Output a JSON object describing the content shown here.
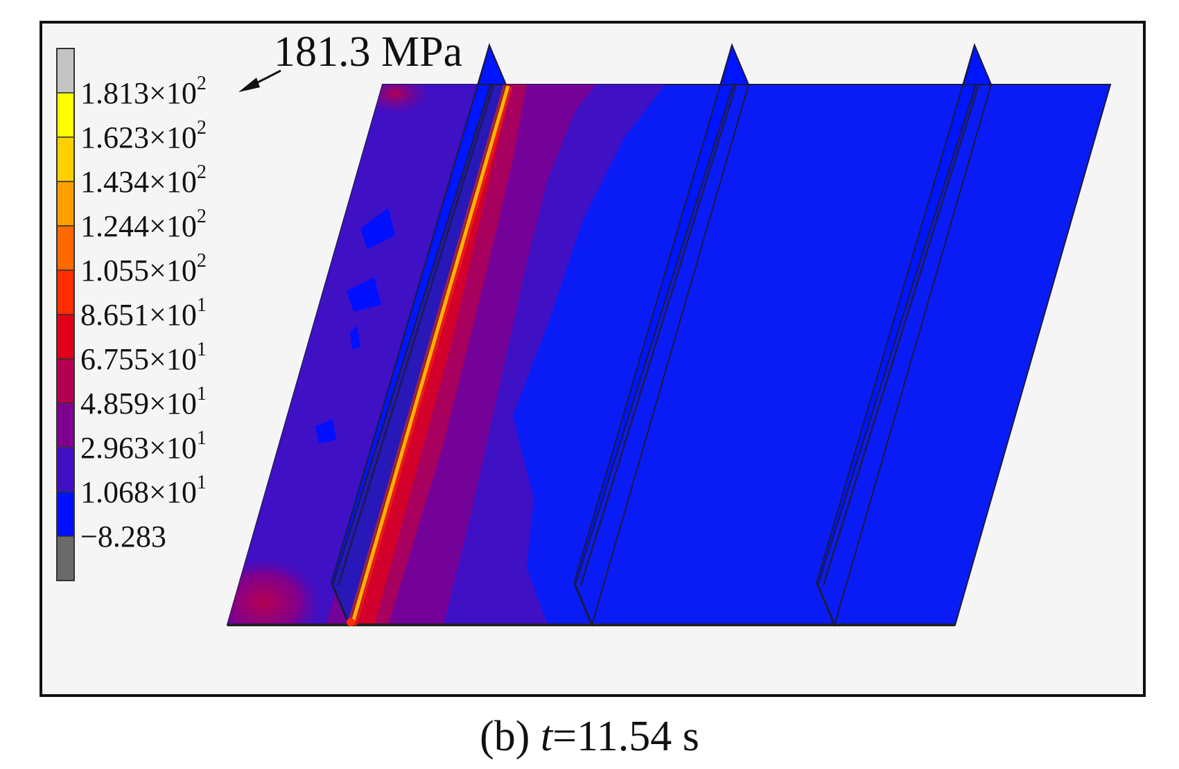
{
  "caption": {
    "prefix": "(b) ",
    "variable": "t",
    "equals_value": "=11.54 s"
  },
  "annotation": {
    "label": "181.3 MPa"
  },
  "legend": {
    "entries": [
      {
        "mantissa": "1.813×10",
        "exponent": "2",
        "color": "#ffff00"
      },
      {
        "mantissa": "1.623×10",
        "exponent": "2",
        "color": "#ffd000"
      },
      {
        "mantissa": "1.434×10",
        "exponent": "2",
        "color": "#ffa000"
      },
      {
        "mantissa": "1.244×10",
        "exponent": "2",
        "color": "#ff6a00"
      },
      {
        "mantissa": "1.055×10",
        "exponent": "2",
        "color": "#ff2d00"
      },
      {
        "mantissa": "8.651×10",
        "exponent": "1",
        "color": "#e0001a"
      },
      {
        "mantissa": "6.755×10",
        "exponent": "1",
        "color": "#b40050"
      },
      {
        "mantissa": "4.859×10",
        "exponent": "1",
        "color": "#7e0090"
      },
      {
        "mantissa": "2.963×10",
        "exponent": "1",
        "color": "#3f10c4"
      },
      {
        "mantissa": "1.068×10",
        "exponent": "1",
        "color": "#0010ff"
      },
      {
        "mantissa": "−8.283",
        "exponent": "",
        "color": "#6a6a6a"
      }
    ],
    "top_cap_color": "#c4c4c4",
    "colors": [
      "#c4c4c4",
      "#ffff00",
      "#ffd000",
      "#ffa000",
      "#ff6a00",
      "#ff2d00",
      "#e0001a",
      "#b40050",
      "#7e0090",
      "#3f10c4",
      "#0010ff",
      "#6a6a6a"
    ]
  },
  "colors": {
    "plate_base": "#0a1cf6",
    "stiffener": "#0015ff",
    "weld_line": "#ffb400",
    "frame_bg": "#f5f5f5"
  }
}
